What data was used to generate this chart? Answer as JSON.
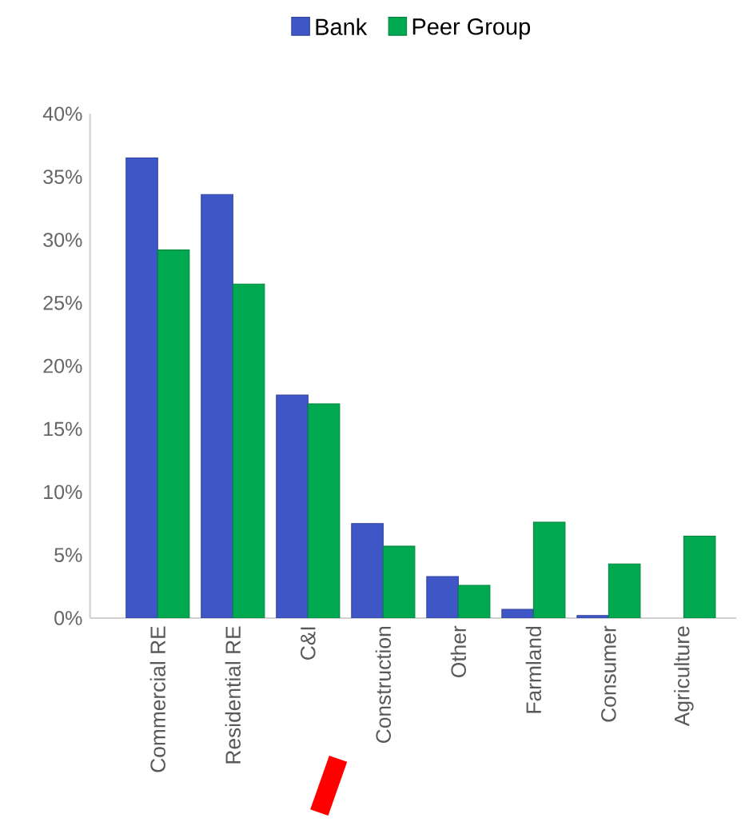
{
  "chart_data": {
    "type": "bar",
    "categories": [
      "Commercial RE",
      "Residential RE",
      "C&I",
      "Construction",
      "Other",
      "Farmland",
      "Consumer",
      "Agriculture"
    ],
    "series": [
      {
        "name": "Bank",
        "color": "#3f56c6",
        "values": [
          36.5,
          33.6,
          17.7,
          7.5,
          3.3,
          0.7,
          0.2,
          null
        ]
      },
      {
        "name": "Peer Group",
        "color": "#00a84f",
        "values": [
          29.2,
          26.5,
          17.0,
          5.7,
          2.6,
          7.6,
          4.3,
          6.5
        ]
      }
    ],
    "ylim": [
      0,
      40
    ],
    "yticks": [
      {
        "value": 0,
        "label": "0%"
      },
      {
        "value": 5,
        "label": "5%"
      },
      {
        "value": 10,
        "label": "10%"
      },
      {
        "value": 15,
        "label": "15%"
      },
      {
        "value": 20,
        "label": "20%"
      },
      {
        "value": 25,
        "label": "25%"
      },
      {
        "value": 30,
        "label": "30%"
      },
      {
        "value": 35,
        "label": "35%"
      },
      {
        "value": 40,
        "label": "40%"
      }
    ],
    "grid": false,
    "legend": "top"
  }
}
